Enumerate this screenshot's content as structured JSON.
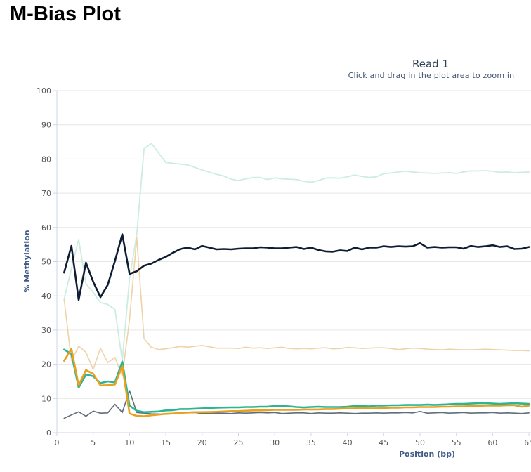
{
  "page": {
    "title": "M-Bias Plot"
  },
  "chart_data": {
    "type": "line",
    "title": "Read 1",
    "subtitle": "Click and drag in the plot area to zoom in",
    "xlabel": "Position (bp)",
    "ylabel": "% Methylation",
    "xlim": [
      0,
      65
    ],
    "ylim": [
      0,
      100
    ],
    "xticks": [
      0,
      5,
      10,
      15,
      20,
      25,
      30,
      35,
      40,
      45,
      50,
      55,
      60,
      65
    ],
    "yticks": [
      0,
      10,
      20,
      30,
      40,
      50,
      60,
      70,
      80,
      90,
      100
    ],
    "grid": "horizontal",
    "series": [
      {
        "color": "#cdece2",
        "width": 1.8,
        "x": [
          1,
          2,
          3,
          4,
          5,
          6,
          7,
          8,
          9,
          10,
          11,
          12,
          13,
          15,
          17,
          18,
          20,
          22,
          23,
          24,
          25,
          26,
          27,
          28,
          29,
          30,
          31,
          32,
          33,
          34,
          35,
          36,
          37,
          38,
          39,
          40,
          41,
          42,
          43,
          44,
          45,
          46,
          47,
          48,
          49,
          50,
          51,
          52,
          53,
          54,
          55,
          56,
          57,
          58,
          59,
          60,
          61,
          62,
          63,
          64,
          65
        ],
        "y": [
          39,
          48,
          56.5,
          43.5,
          41,
          38,
          37.5,
          36,
          21,
          45,
          58,
          83,
          84.6,
          79,
          78.5,
          78.3,
          76.8,
          75.5,
          75,
          74.1,
          73.7,
          74.2,
          74.6,
          74.6,
          74,
          74.5,
          74.2,
          74.1,
          74,
          73.5,
          73.2,
          73.7,
          74.4,
          74.5,
          74.4,
          74.8,
          75.3,
          74.9,
          74.6,
          74.8,
          75.7,
          75.9,
          76.2,
          76.4,
          76.2,
          76,
          75.9,
          75.8,
          75.9,
          76,
          75.8,
          76.2,
          76.5,
          76.5,
          76.6,
          76.4,
          76.1,
          76.2,
          76,
          76.1,
          76.2
        ]
      },
      {
        "color": "#eed3a8",
        "width": 1.6,
        "x": [
          1,
          2,
          3,
          4,
          5,
          6,
          7,
          8,
          9,
          10,
          11,
          12,
          13,
          14,
          15,
          17,
          18,
          20,
          22,
          24,
          25,
          26,
          27,
          28,
          29,
          30,
          31,
          32,
          33,
          34,
          35,
          36,
          37,
          38,
          39,
          40,
          41,
          42,
          43,
          44,
          45,
          46,
          47,
          48,
          49,
          50,
          51,
          52,
          53,
          54,
          55,
          56,
          57,
          58,
          59,
          60,
          61,
          62,
          63,
          64,
          65
        ],
        "y": [
          39,
          21,
          25.3,
          23.5,
          18.5,
          24.7,
          20.5,
          22,
          16.5,
          33,
          57,
          27.5,
          25,
          24.3,
          24.5,
          25.2,
          25,
          25.5,
          24.7,
          24.7,
          24.6,
          25,
          24.7,
          24.8,
          24.6,
          24.8,
          25,
          24.6,
          24.5,
          24.6,
          24.5,
          24.7,
          24.8,
          24.5,
          24.6,
          24.9,
          24.8,
          24.6,
          24.7,
          24.8,
          24.8,
          24.6,
          24.3,
          24.5,
          24.7,
          24.6,
          24.4,
          24.3,
          24.2,
          24.4,
          24.3,
          24.2,
          24.2,
          24.3,
          24.4,
          24.3,
          24.2,
          24.1,
          24,
          24,
          23.9
        ]
      },
      {
        "color": "#5e6e7c",
        "width": 1.6,
        "x": [
          1,
          2,
          3,
          4,
          5,
          6,
          7,
          8,
          9,
          10,
          11,
          12,
          13,
          15,
          17,
          19,
          20,
          21,
          22,
          23,
          24,
          25,
          26,
          27,
          28,
          29,
          30,
          31,
          32,
          33,
          34,
          35,
          36,
          37,
          38,
          39,
          40,
          41,
          42,
          43,
          44,
          45,
          46,
          47,
          48,
          49,
          50,
          51,
          52,
          53,
          54,
          55,
          56,
          57,
          58,
          59,
          60,
          61,
          62,
          63,
          64,
          65
        ],
        "y": [
          4.2,
          5.2,
          6.1,
          4.8,
          6.3,
          5.7,
          5.8,
          8.3,
          5.9,
          12.3,
          5.9,
          5.7,
          5.5,
          5.4,
          5.8,
          5.9,
          5.6,
          5.6,
          5.7,
          5.7,
          5.6,
          5.8,
          5.7,
          5.8,
          5.9,
          5.8,
          5.9,
          5.6,
          5.7,
          5.8,
          5.8,
          5.6,
          5.8,
          5.7,
          5.7,
          5.8,
          5.7,
          5.6,
          5.7,
          5.7,
          5.8,
          5.7,
          5.8,
          5.8,
          5.9,
          5.8,
          6.2,
          5.7,
          5.8,
          5.9,
          5.7,
          5.8,
          5.9,
          5.7,
          5.8,
          5.8,
          5.9,
          5.7,
          5.8,
          5.7,
          5.6,
          5.8
        ]
      },
      {
        "color": "#2cb592",
        "width": 2.6,
        "x": [
          1,
          2,
          3,
          4,
          5,
          6,
          7,
          8,
          9,
          10,
          11,
          12,
          13,
          14,
          15,
          16,
          17,
          18,
          19,
          20,
          22,
          24,
          25,
          26,
          27,
          28,
          29,
          30,
          31,
          32,
          33,
          34,
          35,
          36,
          37,
          38,
          39,
          40,
          41,
          42,
          43,
          44,
          45,
          46,
          47,
          48,
          49,
          50,
          51,
          52,
          53,
          54,
          55,
          56,
          57,
          58,
          59,
          60,
          61,
          62,
          63,
          64,
          65
        ],
        "y": [
          24.3,
          23,
          13.2,
          17,
          16.5,
          14.5,
          15,
          14.7,
          20.8,
          7.9,
          6.4,
          6,
          6.1,
          6.2,
          6.5,
          6.6,
          6.9,
          6.9,
          7,
          7.1,
          7.3,
          7.4,
          7.4,
          7.5,
          7.5,
          7.6,
          7.6,
          7.8,
          7.8,
          7.7,
          7.5,
          7.4,
          7.5,
          7.6,
          7.5,
          7.5,
          7.5,
          7.6,
          7.8,
          7.8,
          7.7,
          7.9,
          7.9,
          8,
          8,
          8.1,
          8.1,
          8.1,
          8.2,
          8.1,
          8.2,
          8.3,
          8.4,
          8.4,
          8.5,
          8.6,
          8.6,
          8.5,
          8.4,
          8.5,
          8.6,
          8.5,
          8.4
        ]
      },
      {
        "color": "#e8a020",
        "width": 2.6,
        "x": [
          1,
          2,
          3,
          4,
          5,
          6,
          7,
          8,
          9,
          10,
          11,
          12,
          13,
          14,
          15,
          16,
          17,
          18,
          19,
          20,
          22,
          24,
          25,
          26,
          27,
          28,
          29,
          30,
          31,
          32,
          33,
          34,
          35,
          36,
          37,
          38,
          39,
          40,
          41,
          42,
          43,
          44,
          45,
          46,
          47,
          48,
          49,
          50,
          51,
          52,
          53,
          54,
          55,
          56,
          57,
          58,
          59,
          60,
          61,
          62,
          63,
          64,
          65
        ],
        "y": [
          21,
          24.5,
          13.8,
          18.3,
          17.2,
          13.8,
          13.9,
          14.1,
          19.5,
          5.6,
          4.9,
          4.8,
          5.1,
          5.3,
          5.5,
          5.6,
          5.8,
          5.9,
          6,
          6,
          6.1,
          6.3,
          6.3,
          6.4,
          6.5,
          6.5,
          6.6,
          6.7,
          6.7,
          6.7,
          6.7,
          6.8,
          6.8,
          6.8,
          6.9,
          6.9,
          7,
          7.1,
          7.1,
          7.2,
          7.1,
          7.1,
          7.2,
          7.3,
          7.3,
          7.4,
          7.4,
          7.5,
          7.5,
          7.5,
          7.6,
          7.6,
          7.7,
          7.7,
          7.8,
          7.8,
          7.9,
          7.9,
          7.9,
          8,
          8,
          7.6,
          7.9
        ]
      },
      {
        "color": "#0f1d33",
        "width": 2.6,
        "x": [
          1,
          2,
          3,
          4,
          5,
          6,
          7,
          8,
          9,
          10,
          11,
          12,
          13,
          14,
          15,
          16,
          17,
          18,
          19,
          20,
          21,
          22,
          23,
          24,
          25,
          26,
          27,
          28,
          29,
          30,
          31,
          32,
          33,
          34,
          35,
          36,
          37,
          38,
          39,
          40,
          41,
          42,
          43,
          44,
          45,
          46,
          47,
          48,
          49,
          50,
          51,
          52,
          53,
          54,
          55,
          56,
          57,
          58,
          59,
          60,
          61,
          62,
          63,
          64,
          65
        ],
        "y": [
          46.8,
          54.6,
          38.8,
          49.7,
          44.1,
          39.6,
          43.2,
          50.2,
          58,
          46.4,
          47.2,
          48.8,
          49.4,
          50.5,
          51.4,
          52.6,
          53.7,
          54.1,
          53.6,
          54.6,
          54.1,
          53.6,
          53.7,
          53.6,
          53.8,
          53.9,
          53.9,
          54.2,
          54.1,
          53.9,
          53.9,
          54.1,
          54.3,
          53.7,
          54.1,
          53.4,
          53,
          52.9,
          53.3,
          53.1,
          54.1,
          53.6,
          54.1,
          54.1,
          54.5,
          54.3,
          54.5,
          54.4,
          54.5,
          55.4,
          54.1,
          54.3,
          54.1,
          54.2,
          54.2,
          53.8,
          54.6,
          54.3,
          54.5,
          54.8,
          54.3,
          54.5,
          53.7,
          53.8,
          54.3
        ]
      }
    ]
  }
}
